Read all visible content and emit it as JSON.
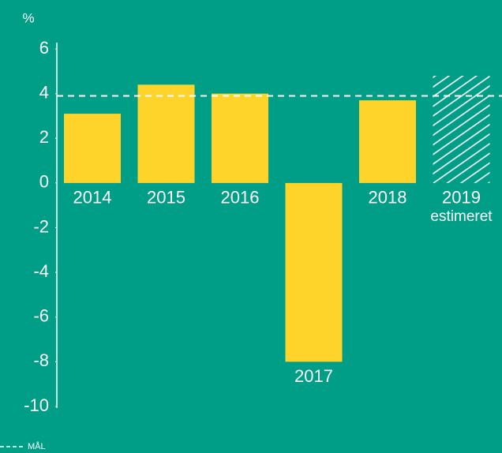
{
  "chart_data": {
    "type": "bar",
    "unit_label": "%",
    "categories": [
      "2014",
      "2015",
      "2016",
      "2017",
      "2018",
      "2019"
    ],
    "values": [
      3.1,
      4.4,
      4.0,
      -8.0,
      3.7,
      4.8
    ],
    "hatched": [
      false,
      false,
      false,
      false,
      false,
      true
    ],
    "estimate_label": "estimeret",
    "color": "#ffd42a",
    "hatch_color": "#ffffff",
    "ylim": [
      -10,
      6
    ],
    "yticks": [
      -10,
      -8,
      -6,
      -4,
      -2,
      0,
      2,
      4,
      6
    ],
    "grid": false,
    "target": {
      "label": "MÅL",
      "value": 3.9,
      "color": "#ffffff"
    }
  }
}
